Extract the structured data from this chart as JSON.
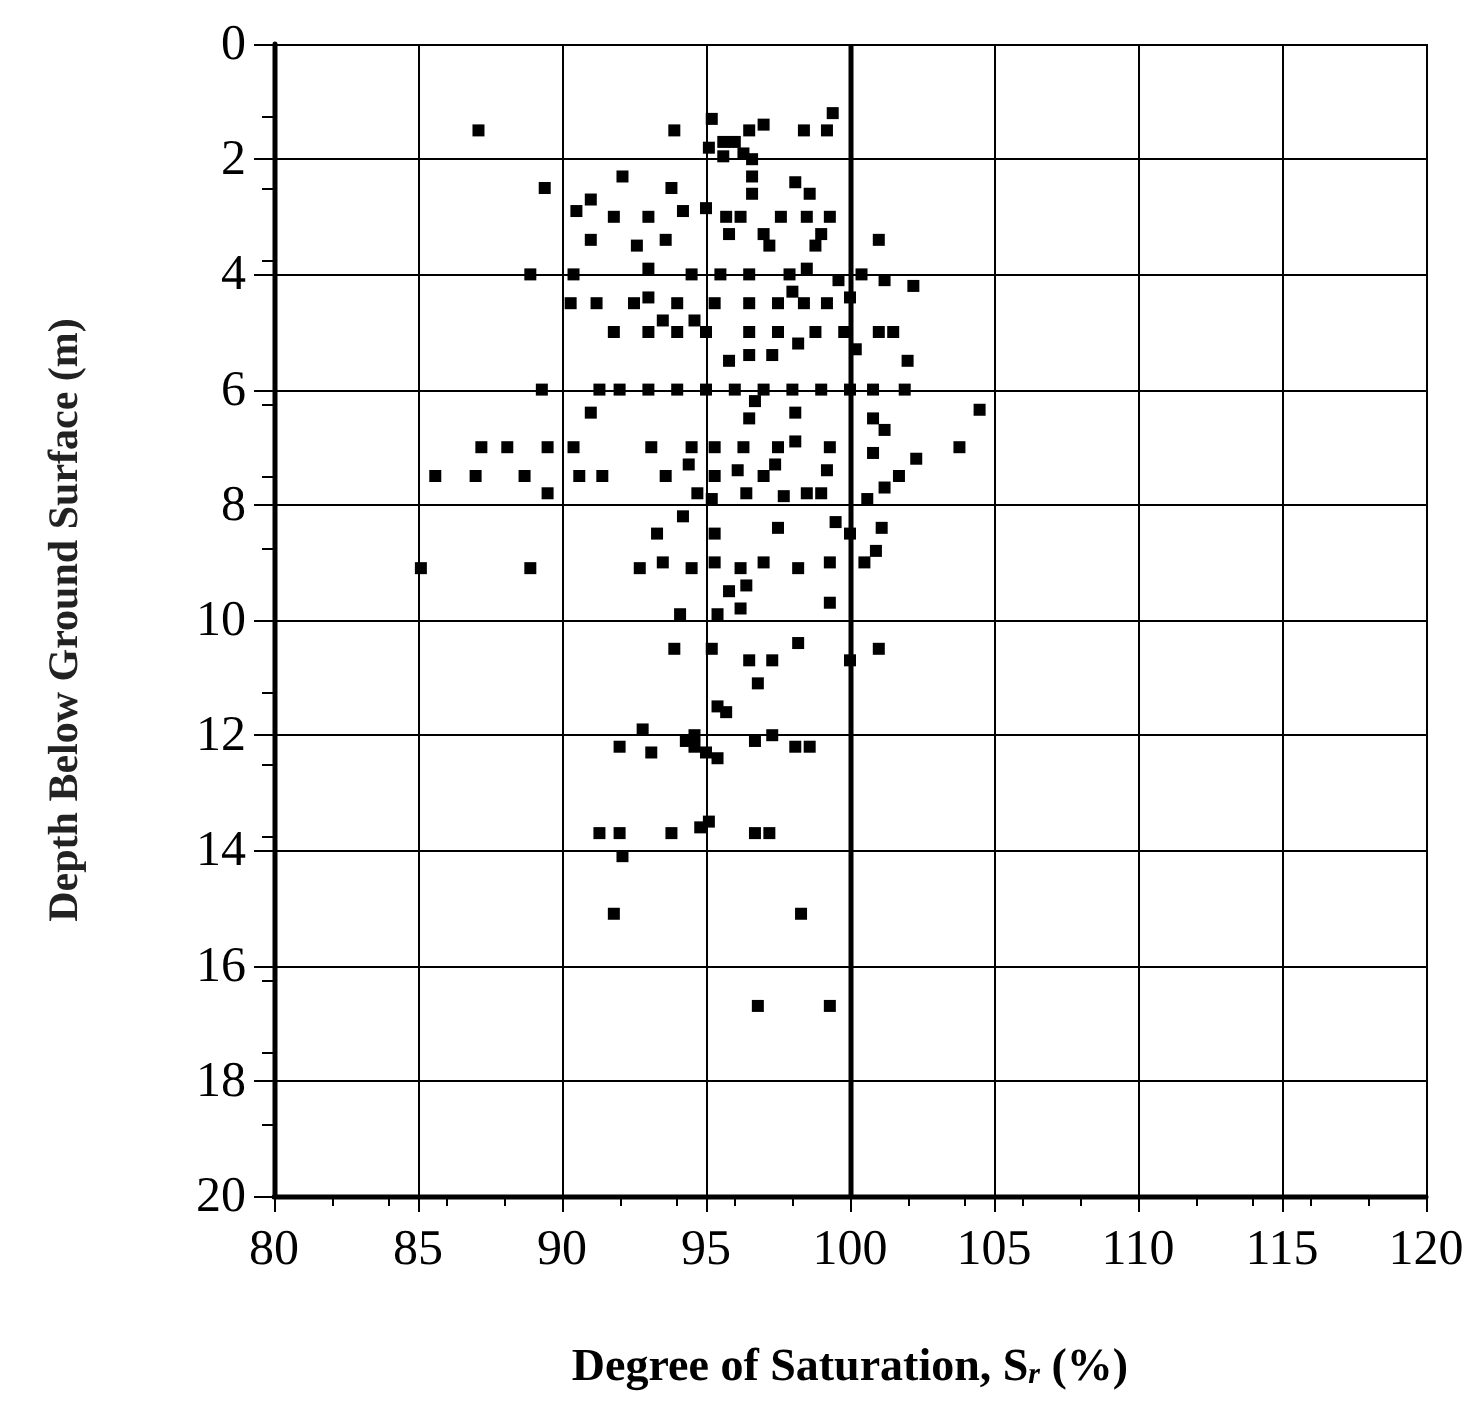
{
  "chart_data": {
    "type": "scatter",
    "xlabel": "Degree of Saturation, S$_{r}$ (%)",
    "ylabel": "Depth Below Ground Surface (m)",
    "xlim": [
      80,
      120
    ],
    "xticks": [
      80,
      85,
      90,
      95,
      100,
      105,
      110,
      115,
      120
    ],
    "ylim": [
      20,
      0
    ],
    "yticks": [
      0,
      2,
      4,
      6,
      8,
      10,
      12,
      14,
      16,
      18,
      20
    ],
    "grid": true,
    "marker": "square",
    "ref_lines": [
      {
        "axis": "x",
        "value": 100,
        "color": "#000000",
        "line_style": "solid"
      }
    ],
    "series": [
      {
        "color": "#000000",
        "x": [
          87.1,
          93.9,
          95.2,
          96.5,
          97.0,
          98.4,
          99.2,
          99.4,
          95.1,
          95.6,
          96.0,
          96.3,
          95.6,
          96.6,
          89.4,
          91.0,
          92.1,
          93.8,
          96.6,
          96.6,
          98.1,
          98.6,
          90.5,
          91.8,
          93.0,
          94.2,
          95.0,
          95.7,
          96.2,
          97.6,
          98.5,
          99.3,
          97.0,
          95.8,
          92.6,
          91.0,
          93.6,
          97.2,
          98.8,
          101.0,
          99.0,
          88.9,
          90.4,
          93.0,
          94.5,
          95.5,
          96.5,
          97.9,
          98.5,
          99.6,
          100.4,
          101.2,
          102.2,
          98.0,
          90.3,
          91.2,
          92.5,
          93.0,
          94.0,
          95.3,
          96.5,
          97.5,
          98.4,
          99.2,
          100.0,
          94.6,
          93.5,
          91.8,
          93.0,
          94.0,
          95.0,
          96.5,
          97.5,
          98.8,
          99.8,
          101.0,
          101.5,
          98.2,
          100.2,
          102.0,
          95.8,
          96.5,
          97.3,
          89.3,
          91.3,
          92.0,
          93.0,
          94.0,
          95.0,
          96.0,
          97.0,
          98.0,
          99.0,
          100.0,
          100.8,
          101.9,
          96.7,
          91.0,
          96.5,
          98.1,
          100.8,
          104.5,
          101.2,
          87.2,
          88.1,
          89.5,
          90.4,
          93.1,
          94.5,
          95.3,
          96.3,
          97.5,
          98.1,
          99.3,
          103.8,
          102.3,
          100.8,
          85.6,
          87.0,
          88.7,
          90.6,
          91.4,
          93.6,
          94.4,
          95.3,
          96.1,
          97.0,
          97.4,
          99.2,
          101.7,
          101.2,
          89.5,
          94.7,
          95.2,
          96.4,
          97.7,
          98.5,
          99.0,
          100.6,
          93.3,
          94.2,
          95.3,
          97.5,
          99.5,
          100.0,
          101.1,
          85.1,
          88.9,
          92.7,
          93.5,
          94.5,
          95.3,
          96.2,
          97.0,
          98.2,
          99.3,
          100.5,
          100.9,
          95.8,
          96.4,
          96.2,
          99.3,
          94.1,
          95.4,
          93.9,
          95.2,
          96.5,
          97.3,
          98.2,
          100.0,
          101.0,
          96.8,
          95.4,
          95.7,
          92.8,
          92.0,
          93.1,
          94.3,
          94.6,
          95.0,
          95.4,
          96.7,
          97.3,
          98.1,
          98.6,
          94.6,
          91.3,
          92.0,
          93.8,
          94.8,
          95.1,
          96.7,
          97.2,
          92.1,
          91.8,
          98.3,
          96.8,
          99.3
        ],
        "values": [
          1.5,
          1.5,
          1.3,
          1.5,
          1.4,
          1.5,
          1.5,
          1.2,
          1.8,
          1.7,
          1.7,
          1.9,
          1.95,
          2.0,
          2.5,
          2.7,
          2.3,
          2.5,
          2.3,
          2.6,
          2.4,
          2.6,
          2.9,
          3.0,
          3.0,
          2.9,
          2.85,
          3.0,
          3.0,
          3.0,
          3.0,
          3.0,
          3.3,
          3.3,
          3.5,
          3.4,
          3.4,
          3.5,
          3.5,
          3.4,
          3.3,
          4.0,
          4.0,
          3.9,
          4.0,
          4.0,
          4.0,
          4.0,
          3.9,
          4.1,
          4.0,
          4.1,
          4.2,
          4.3,
          4.5,
          4.5,
          4.5,
          4.4,
          4.5,
          4.5,
          4.5,
          4.5,
          4.5,
          4.5,
          4.4,
          4.8,
          4.8,
          5.0,
          5.0,
          5.0,
          5.0,
          5.0,
          5.0,
          5.0,
          5.0,
          5.0,
          5.0,
          5.2,
          5.3,
          5.5,
          5.5,
          5.4,
          5.4,
          6.0,
          6.0,
          6.0,
          6.0,
          6.0,
          6.0,
          6.0,
          6.0,
          6.0,
          6.0,
          6.0,
          6.0,
          6.0,
          6.2,
          6.4,
          6.5,
          6.4,
          6.5,
          6.35,
          6.7,
          7.0,
          7.0,
          7.0,
          7.0,
          7.0,
          7.0,
          7.0,
          7.0,
          7.0,
          6.9,
          7.0,
          7.0,
          7.2,
          7.1,
          7.5,
          7.5,
          7.5,
          7.5,
          7.5,
          7.5,
          7.3,
          7.5,
          7.4,
          7.5,
          7.3,
          7.4,
          7.5,
          7.7,
          7.8,
          7.8,
          7.9,
          7.8,
          7.85,
          7.8,
          7.8,
          7.9,
          8.5,
          8.2,
          8.5,
          8.4,
          8.3,
          8.5,
          8.4,
          9.1,
          9.1,
          9.1,
          9.0,
          9.1,
          9.0,
          9.1,
          9.0,
          9.1,
          9.0,
          9.0,
          8.8,
          9.5,
          9.4,
          9.8,
          9.7,
          9.9,
          9.9,
          10.5,
          10.5,
          10.7,
          10.7,
          10.4,
          10.7,
          10.5,
          11.1,
          11.5,
          11.6,
          11.9,
          12.2,
          12.3,
          12.1,
          12.0,
          12.3,
          12.4,
          12.1,
          12.0,
          12.2,
          12.2,
          12.2,
          13.7,
          13.7,
          13.7,
          13.6,
          13.5,
          13.7,
          13.7,
          14.1,
          15.1,
          15.1,
          16.7,
          16.7
        ]
      }
    ]
  }
}
